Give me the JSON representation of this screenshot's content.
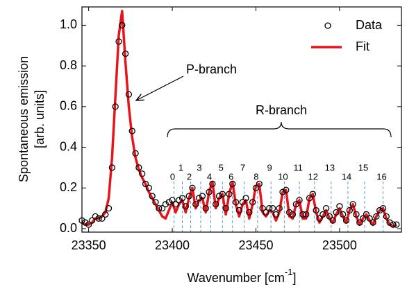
{
  "chart_data": {
    "type": "scatter-fit",
    "ylabel": [
      "Spontaneous emission",
      "[arb. units]"
    ],
    "xlabel": {
      "text": "Wavenumber [cm",
      "sup": "-1",
      "end": "]"
    },
    "xlim": [
      23346,
      23537
    ],
    "ylim": [
      -0.017,
      1.09
    ],
    "xticks": [
      23350,
      23400,
      23450,
      23500
    ],
    "yticks": [
      {
        "value": 0,
        "label": "0.0"
      },
      0.2,
      0.4,
      0.6,
      0.8,
      {
        "value": 1,
        "label": "1.0"
      }
    ],
    "legend": "top-right",
    "x": [
      23346,
      23348,
      23350,
      23352,
      23354,
      23356,
      23358,
      23360,
      23362,
      23364,
      23366,
      23368,
      23370,
      23372,
      23374,
      23376,
      23378,
      23380,
      23382,
      23384,
      23386,
      23388,
      23390,
      23392,
      23394,
      23396,
      23398,
      23400,
      23402,
      23404,
      23406,
      23408,
      23410,
      23412,
      23414,
      23416,
      23418,
      23420,
      23422,
      23424,
      23426,
      23428,
      23430,
      23432,
      23434,
      23436,
      23438,
      23440,
      23442,
      23444,
      23446,
      23448,
      23450,
      23452,
      23454,
      23456,
      23458,
      23460,
      23462,
      23464,
      23466,
      23468,
      23470,
      23472,
      23474,
      23476,
      23478,
      23480,
      23482,
      23484,
      23486,
      23488,
      23490,
      23492,
      23494,
      23496,
      23498,
      23500,
      23502,
      23504,
      23506,
      23508,
      23510,
      23512,
      23514,
      23516,
      23518,
      23520,
      23522,
      23524,
      23526,
      23528,
      23530,
      23532,
      23534
    ],
    "series": [
      {
        "name": "Data",
        "color": "#000000",
        "marker": "open-circle",
        "values": [
          0.04,
          0.03,
          0.02,
          0.04,
          0.06,
          0.05,
          0.05,
          0.07,
          0.1,
          0.3,
          0.6,
          0.92,
          1.0,
          0.86,
          0.66,
          0.48,
          0.37,
          0.3,
          0.27,
          0.22,
          0.2,
          0.16,
          0.13,
          0.1,
          0.1,
          0.12,
          0.13,
          0.14,
          0.12,
          0.14,
          0.15,
          0.11,
          0.16,
          0.2,
          0.12,
          0.15,
          0.16,
          0.1,
          0.18,
          0.22,
          0.12,
          0.16,
          0.17,
          0.1,
          0.17,
          0.22,
          0.13,
          0.09,
          0.13,
          0.15,
          0.08,
          0.13,
          0.2,
          0.22,
          0.1,
          0.08,
          0.1,
          0.1,
          0.07,
          0.1,
          0.18,
          0.19,
          0.08,
          0.07,
          0.12,
          0.14,
          0.07,
          0.07,
          0.15,
          0.17,
          0.09,
          0.05,
          0.07,
          0.1,
          0.06,
          0.04,
          0.08,
          0.11,
          0.07,
          0.04,
          0.09,
          0.12,
          0.07,
          0.03,
          0.05,
          0.07,
          0.05,
          0.03,
          0.06,
          0.09,
          0.1,
          0.06,
          0.03,
          0.02,
          0.02
        ]
      },
      {
        "name": "Fit",
        "color": "#e8141b",
        "marker": "line",
        "values": [
          0.03,
          0.02,
          0.02,
          0.03,
          0.05,
          0.05,
          0.06,
          0.08,
          0.15,
          0.35,
          0.65,
          0.95,
          1.07,
          0.82,
          0.6,
          0.45,
          0.35,
          0.29,
          0.25,
          0.22,
          0.18,
          0.15,
          0.12,
          0.09,
          0.06,
          0.05,
          0.09,
          0.13,
          0.08,
          0.12,
          0.14,
          0.08,
          0.15,
          0.2,
          0.1,
          0.14,
          0.15,
          0.08,
          0.18,
          0.23,
          0.1,
          0.15,
          0.17,
          0.07,
          0.17,
          0.23,
          0.12,
          0.06,
          0.12,
          0.14,
          0.05,
          0.12,
          0.21,
          0.22,
          0.08,
          0.06,
          0.09,
          0.08,
          0.04,
          0.08,
          0.18,
          0.19,
          0.06,
          0.05,
          0.12,
          0.14,
          0.05,
          0.05,
          0.15,
          0.17,
          0.08,
          0.03,
          0.06,
          0.09,
          0.05,
          0.03,
          0.07,
          0.1,
          0.06,
          0.03,
          0.09,
          0.12,
          0.06,
          0.02,
          0.05,
          0.07,
          0.04,
          0.02,
          0.06,
          0.09,
          0.1,
          0.05,
          0.02,
          0.01,
          0.02
        ]
      }
    ],
    "annotations": {
      "p_branch": "P-branch",
      "r_branch": "R-branch"
    },
    "branch_lines": [
      {
        "x": 23401,
        "label": "0"
      },
      {
        "x": 23406,
        "label": "1"
      },
      {
        "x": 23411,
        "label": "2"
      },
      {
        "x": 23417,
        "label": "3"
      },
      {
        "x": 23423,
        "label": "4"
      },
      {
        "x": 23430,
        "label": "5"
      },
      {
        "x": 23436,
        "label": "6"
      },
      {
        "x": 23443,
        "label": "7"
      },
      {
        "x": 23451,
        "label": "8"
      },
      {
        "x": 23459,
        "label": "9"
      },
      {
        "x": 23467,
        "label": "10"
      },
      {
        "x": 23476,
        "label": "11"
      },
      {
        "x": 23485,
        "label": "12"
      },
      {
        "x": 23495,
        "label": "13"
      },
      {
        "x": 23505,
        "label": "14"
      },
      {
        "x": 23515,
        "label": "15"
      },
      {
        "x": 23526,
        "label": "16"
      }
    ],
    "branch_line_color": "#5b9bd5"
  }
}
